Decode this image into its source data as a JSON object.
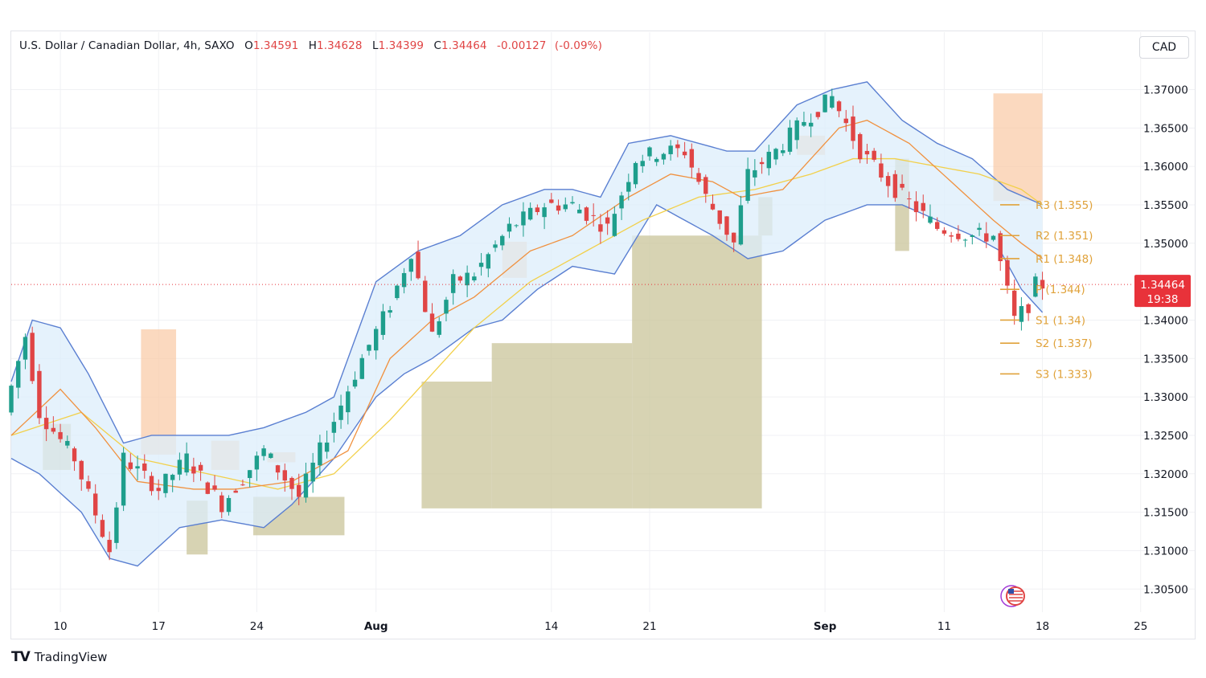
{
  "header": {
    "symbol": "U.S. Dollar / Canadian Dollar, 4h, SAXO",
    "open_label": "O",
    "open": "1.34591",
    "high_label": "H",
    "high": "1.34628",
    "low_label": "L",
    "low": "1.34399",
    "close_label": "C",
    "close": "1.34464",
    "change": "-0.00127",
    "change_pct": "(-0.09%)"
  },
  "currency_button": "CAD",
  "brand": {
    "name": "TradingView",
    "logo": "TV"
  },
  "colors": {
    "up": "#1e9e8c",
    "down": "#e04545",
    "bb": "#5a7fd1",
    "bb_fill": "#dceefb",
    "ma_fast": "#f0913f",
    "ma_slow": "#f2d04a",
    "pivot": "#e0a23a",
    "supply": "#f9c9a4",
    "demand": "#c9c49a",
    "price_tag": "#e8323a"
  },
  "chart_data": {
    "type": "candlestick",
    "y_axis": {
      "ticks": [
        "1.37000",
        "1.36500",
        "1.36000",
        "1.35500",
        "1.35000",
        "1.34000",
        "1.33500",
        "1.33000",
        "1.32500",
        "1.32000",
        "1.31500",
        "1.31000",
        "1.30500"
      ],
      "ylim": [
        1.302,
        1.3735
      ]
    },
    "x_axis": {
      "ticks": [
        {
          "label": "10",
          "bold": false
        },
        {
          "label": "17",
          "bold": false
        },
        {
          "label": "24",
          "bold": false
        },
        {
          "label": "Aug",
          "bold": true
        },
        {
          "label": "14",
          "bold": false
        },
        {
          "label": "21",
          "bold": false
        },
        {
          "label": "Sep",
          "bold": true
        },
        {
          "label": "11",
          "bold": false
        },
        {
          "label": "18",
          "bold": false
        },
        {
          "label": "25",
          "bold": false
        }
      ]
    },
    "last_price": {
      "value": "1.34464",
      "countdown": "19:38"
    },
    "pivots": [
      {
        "label": "R3 (1.355)",
        "value": 1.355
      },
      {
        "label": "R2 (1.351)",
        "value": 1.351
      },
      {
        "label": "R1 (1.348)",
        "value": 1.348
      },
      {
        "label": "P (1.344)",
        "value": 1.344
      },
      {
        "label": "S1 (1.34)",
        "value": 1.34
      },
      {
        "label": "S2 (1.337)",
        "value": 1.337
      },
      {
        "label": "S3 (1.333)",
        "value": 1.333
      }
    ],
    "price_path": [
      [
        0,
        1.328
      ],
      [
        3,
        1.338
      ],
      [
        5,
        1.328
      ],
      [
        10,
        1.322
      ],
      [
        15,
        1.31
      ],
      [
        17,
        1.322
      ],
      [
        22,
        1.318
      ],
      [
        26,
        1.322
      ],
      [
        31,
        1.316
      ],
      [
        37,
        1.323
      ],
      [
        42,
        1.317
      ],
      [
        46,
        1.325
      ],
      [
        51,
        1.335
      ],
      [
        55,
        1.342
      ],
      [
        58,
        1.349
      ],
      [
        61,
        1.338
      ],
      [
        64,
        1.345
      ],
      [
        67,
        1.346
      ],
      [
        72,
        1.352
      ],
      [
        77,
        1.355
      ],
      [
        81,
        1.355
      ],
      [
        86,
        1.352
      ],
      [
        90,
        1.361
      ],
      [
        94,
        1.362
      ],
      [
        97,
        1.362
      ],
      [
        100,
        1.356
      ],
      [
        104,
        1.35
      ],
      [
        106,
        1.359
      ],
      [
        110,
        1.362
      ],
      [
        114,
        1.366
      ],
      [
        118,
        1.369
      ],
      [
        122,
        1.362
      ],
      [
        127,
        1.357
      ],
      [
        133,
        1.352
      ],
      [
        138,
        1.351
      ],
      [
        141,
        1.351
      ],
      [
        144,
        1.34
      ],
      [
        146,
        1.342
      ],
      [
        147,
        1.3446
      ]
    ],
    "bollinger_upper": [
      [
        0,
        1.332
      ],
      [
        3,
        1.34
      ],
      [
        7,
        1.339
      ],
      [
        11,
        1.333
      ],
      [
        16,
        1.324
      ],
      [
        20,
        1.325
      ],
      [
        26,
        1.325
      ],
      [
        31,
        1.325
      ],
      [
        36,
        1.326
      ],
      [
        42,
        1.328
      ],
      [
        46,
        1.33
      ],
      [
        52,
        1.345
      ],
      [
        58,
        1.349
      ],
      [
        64,
        1.351
      ],
      [
        70,
        1.355
      ],
      [
        76,
        1.357
      ],
      [
        80,
        1.357
      ],
      [
        84,
        1.356
      ],
      [
        88,
        1.363
      ],
      [
        94,
        1.364
      ],
      [
        98,
        1.363
      ],
      [
        102,
        1.362
      ],
      [
        106,
        1.362
      ],
      [
        112,
        1.368
      ],
      [
        117,
        1.37
      ],
      [
        122,
        1.371
      ],
      [
        127,
        1.366
      ],
      [
        132,
        1.363
      ],
      [
        137,
        1.361
      ],
      [
        142,
        1.357
      ],
      [
        147,
        1.355
      ]
    ],
    "bollinger_lower": [
      [
        0,
        1.322
      ],
      [
        4,
        1.32
      ],
      [
        10,
        1.315
      ],
      [
        14,
        1.309
      ],
      [
        18,
        1.308
      ],
      [
        24,
        1.313
      ],
      [
        30,
        1.314
      ],
      [
        36,
        1.313
      ],
      [
        40,
        1.316
      ],
      [
        46,
        1.322
      ],
      [
        52,
        1.33
      ],
      [
        56,
        1.333
      ],
      [
        60,
        1.335
      ],
      [
        66,
        1.339
      ],
      [
        70,
        1.34
      ],
      [
        75,
        1.344
      ],
      [
        80,
        1.347
      ],
      [
        86,
        1.346
      ],
      [
        92,
        1.355
      ],
      [
        96,
        1.353
      ],
      [
        100,
        1.351
      ],
      [
        105,
        1.348
      ],
      [
        110,
        1.349
      ],
      [
        116,
        1.353
      ],
      [
        122,
        1.355
      ],
      [
        127,
        1.355
      ],
      [
        132,
        1.353
      ],
      [
        137,
        1.351
      ],
      [
        141,
        1.349
      ],
      [
        144,
        1.344
      ],
      [
        147,
        1.341
      ]
    ],
    "ma_fast": [
      [
        0,
        1.325
      ],
      [
        7,
        1.331
      ],
      [
        12,
        1.326
      ],
      [
        18,
        1.319
      ],
      [
        26,
        1.318
      ],
      [
        32,
        1.318
      ],
      [
        40,
        1.319
      ],
      [
        48,
        1.323
      ],
      [
        54,
        1.335
      ],
      [
        60,
        1.34
      ],
      [
        66,
        1.343
      ],
      [
        74,
        1.349
      ],
      [
        80,
        1.351
      ],
      [
        88,
        1.356
      ],
      [
        94,
        1.359
      ],
      [
        100,
        1.358
      ],
      [
        104,
        1.356
      ],
      [
        110,
        1.357
      ],
      [
        118,
        1.365
      ],
      [
        122,
        1.366
      ],
      [
        128,
        1.363
      ],
      [
        134,
        1.358
      ],
      [
        140,
        1.353
      ],
      [
        144,
        1.35
      ],
      [
        147,
        1.348
      ]
    ],
    "ma_slow": [
      [
        0,
        1.325
      ],
      [
        10,
        1.328
      ],
      [
        18,
        1.322
      ],
      [
        28,
        1.32
      ],
      [
        38,
        1.318
      ],
      [
        46,
        1.32
      ],
      [
        54,
        1.327
      ],
      [
        60,
        1.333
      ],
      [
        66,
        1.339
      ],
      [
        74,
        1.345
      ],
      [
        82,
        1.349
      ],
      [
        90,
        1.353
      ],
      [
        98,
        1.356
      ],
      [
        106,
        1.357
      ],
      [
        114,
        1.359
      ],
      [
        120,
        1.361
      ],
      [
        126,
        1.361
      ],
      [
        132,
        1.36
      ],
      [
        138,
        1.359
      ],
      [
        144,
        1.357
      ],
      [
        147,
        1.355
      ]
    ],
    "supply_zones": [
      {
        "x0": 18.5,
        "x1": 23.5,
        "top": 1.3388,
        "bottom": 1.3225
      },
      {
        "x0": 28.5,
        "x1": 32.5,
        "top": 1.3243,
        "bottom": 1.3205
      },
      {
        "x0": 36.5,
        "x1": 40.5,
        "top": 1.3228,
        "bottom": 1.3215
      },
      {
        "x0": 70.0,
        "x1": 73.5,
        "top": 1.3502,
        "bottom": 1.3455
      },
      {
        "x0": 112.0,
        "x1": 116.0,
        "top": 1.364,
        "bottom": 1.3615
      },
      {
        "x0": 140.0,
        "x1": 147.0,
        "top": 1.3695,
        "bottom": 1.3555
      }
    ],
    "demand_zones": [
      {
        "x0": 4.5,
        "x1": 8.5,
        "top": 1.3265,
        "bottom": 1.3205
      },
      {
        "x0": 25.0,
        "x1": 28.0,
        "top": 1.3165,
        "bottom": 1.3095
      },
      {
        "x0": 34.5,
        "x1": 47.5,
        "top": 1.317,
        "bottom": 1.312
      },
      {
        "x0": 58.5,
        "x1": 68.5,
        "top": 1.332,
        "bottom": 1.3155
      },
      {
        "x0": 68.5,
        "x1": 88.5,
        "top": 1.337,
        "bottom": 1.3155
      },
      {
        "x0": 88.5,
        "x1": 107.0,
        "top": 1.351,
        "bottom": 1.3155
      },
      {
        "x0": 106.5,
        "x1": 108.5,
        "top": 1.356,
        "bottom": 1.351
      },
      {
        "x0": 126.0,
        "x1": 128.0,
        "top": 1.361,
        "bottom": 1.349
      }
    ]
  }
}
